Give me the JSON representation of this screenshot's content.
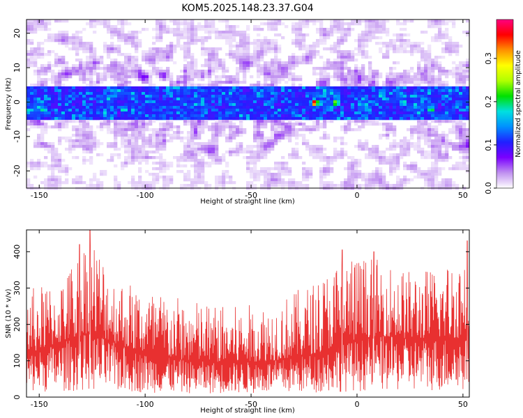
{
  "title": "KOM5.2025.148.23.37.G04",
  "chart_data": [
    {
      "type": "heatmap",
      "xlabel": "Height of straight line (km)",
      "ylabel": "Frequency (Hz)",
      "xlim": [
        -156,
        53
      ],
      "ylim": [
        -25,
        24
      ],
      "xticks": [
        -150,
        -100,
        -50,
        0,
        50
      ],
      "yticks": [
        -20,
        -10,
        0,
        10,
        20
      ],
      "colorbar": {
        "label": "Normalized spectral amplitude",
        "range": [
          0,
          0.39
        ],
        "ticks": [
          0.0,
          0.1,
          0.2,
          0.3
        ],
        "colors": [
          "#ffffff",
          "#c090f0",
          "#7a00ff",
          "#2020ff",
          "#0090ff",
          "#00e0e0",
          "#00e000",
          "#b0ff00",
          "#ffff00",
          "#ff9000",
          "#ff0000",
          "#ff0080"
        ]
      },
      "band_center_hz": 0,
      "band_halfwidth_hz": 5,
      "peak": {
        "x": -20,
        "y": 0,
        "value": 0.38
      },
      "hotspots": [
        {
          "x": -148,
          "y": -2,
          "value": 0.2
        },
        {
          "x": -135,
          "y": 2,
          "value": 0.15
        },
        {
          "x": -110,
          "y": -2,
          "value": 0.2
        },
        {
          "x": -98,
          "y": 2,
          "value": 0.15
        },
        {
          "x": -42,
          "y": 0,
          "value": 0.15
        },
        {
          "x": -10,
          "y": 0,
          "value": 0.25
        },
        {
          "x": 22,
          "y": 0,
          "value": 0.2
        },
        {
          "x": 35,
          "y": -2,
          "value": 0.22
        },
        {
          "x": 48,
          "y": 0,
          "value": 0.15
        }
      ]
    },
    {
      "type": "line",
      "xlabel": "Height of straight line (km)",
      "ylabel": "SNR (10 * v/v)",
      "xlim": [
        -156,
        53
      ],
      "ylim": [
        0,
        460
      ],
      "xticks": [
        -150,
        -100,
        -50,
        0,
        50
      ],
      "yticks": [
        0,
        100,
        200,
        300,
        400
      ],
      "color": "#e83030",
      "points": 1400,
      "envelope": [
        {
          "x": -155,
          "mean": 120,
          "max": 300
        },
        {
          "x": -140,
          "mean": 150,
          "max": 320
        },
        {
          "x": -130,
          "mean": 170,
          "max": 420
        },
        {
          "x": -126,
          "mean": 180,
          "max": 465
        },
        {
          "x": -115,
          "mean": 150,
          "max": 340
        },
        {
          "x": -100,
          "mean": 120,
          "max": 300
        },
        {
          "x": -80,
          "mean": 100,
          "max": 270
        },
        {
          "x": -60,
          "mean": 95,
          "max": 250
        },
        {
          "x": -40,
          "mean": 100,
          "max": 260
        },
        {
          "x": -20,
          "mean": 120,
          "max": 320
        },
        {
          "x": -5,
          "mean": 150,
          "max": 400
        },
        {
          "x": 10,
          "mean": 170,
          "max": 380
        },
        {
          "x": 25,
          "mean": 160,
          "max": 350
        },
        {
          "x": 40,
          "mean": 165,
          "max": 360
        },
        {
          "x": 53,
          "mean": 160,
          "max": 430
        }
      ],
      "spikes": [
        {
          "x": -126,
          "y": 465
        },
        {
          "x": -131,
          "y": 420
        },
        {
          "x": -7,
          "y": 405
        },
        {
          "x": 8,
          "y": 400
        },
        {
          "x": 52,
          "y": 430
        }
      ]
    }
  ]
}
